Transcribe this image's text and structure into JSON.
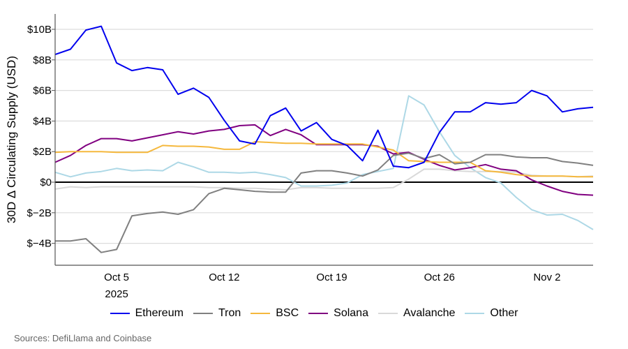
{
  "chart_data": {
    "type": "line",
    "title": "",
    "xlabel": "",
    "ylabel": "30D Δ Circulating Supply (USD)",
    "x_start": "2025-10-01",
    "x_end": "2025-11-05",
    "x_ticks": [
      {
        "date": "2025-10-05",
        "label": "Oct 5",
        "sublabel": "2025"
      },
      {
        "date": "2025-10-12",
        "label": "Oct 12",
        "sublabel": ""
      },
      {
        "date": "2025-10-19",
        "label": "Oct 19",
        "sublabel": ""
      },
      {
        "date": "2025-10-26",
        "label": "Oct 26",
        "sublabel": ""
      },
      {
        "date": "2025-11-02",
        "label": "Nov 2",
        "sublabel": ""
      }
    ],
    "ylim": [
      -5.3,
      11
    ],
    "y_unit": "B USD",
    "y_ticks": [
      {
        "value": 10,
        "label": "$10B"
      },
      {
        "value": 8,
        "label": "$8B"
      },
      {
        "value": 6,
        "label": "$6B"
      },
      {
        "value": 4,
        "label": "$4B"
      },
      {
        "value": 2,
        "label": "$2B"
      },
      {
        "value": 0,
        "label": "$0"
      },
      {
        "value": -2,
        "label": "$−2B"
      },
      {
        "value": -4,
        "label": "$−4B"
      }
    ],
    "grid": true,
    "zero_line": true,
    "legend_position": "bottom",
    "series": [
      {
        "name": "Ethereum",
        "color": "#0000ee",
        "values": [
          8.35,
          8.7,
          9.95,
          10.2,
          7.8,
          7.3,
          7.5,
          7.35,
          5.75,
          6.15,
          5.55,
          4.05,
          2.7,
          2.5,
          4.35,
          4.85,
          3.35,
          3.9,
          2.8,
          2.4,
          1.4,
          3.4,
          1.05,
          0.95,
          1.3,
          3.25,
          4.6,
          4.6,
          5.2,
          5.1,
          5.2,
          6.0,
          5.65,
          4.6,
          4.8,
          4.9
        ]
      },
      {
        "name": "Tron",
        "color": "#808080",
        "values": [
          -3.85,
          -3.85,
          -3.7,
          -4.6,
          -4.4,
          -2.2,
          -2.05,
          -1.95,
          -2.1,
          -1.8,
          -0.75,
          -0.4,
          -0.5,
          -0.6,
          -0.65,
          -0.65,
          0.6,
          0.75,
          0.75,
          0.6,
          0.4,
          0.8,
          1.75,
          1.9,
          1.55,
          1.8,
          1.2,
          1.3,
          1.8,
          1.8,
          1.65,
          1.6,
          1.6,
          1.35,
          1.25,
          1.1
        ]
      },
      {
        "name": "BSC",
        "color": "#f5b83d",
        "values": [
          1.95,
          2.0,
          2.0,
          2.0,
          1.95,
          1.95,
          1.95,
          2.4,
          2.35,
          2.35,
          2.3,
          2.15,
          2.15,
          2.65,
          2.6,
          2.55,
          2.55,
          2.5,
          2.5,
          2.5,
          2.5,
          2.3,
          2.1,
          1.4,
          1.35,
          1.3,
          1.3,
          1.3,
          0.75,
          0.65,
          0.5,
          0.4,
          0.4,
          0.4,
          0.35,
          0.35
        ]
      },
      {
        "name": "Solana",
        "color": "#800080",
        "values": [
          1.3,
          1.75,
          2.4,
          2.85,
          2.85,
          2.7,
          2.9,
          3.1,
          3.3,
          3.15,
          3.35,
          3.45,
          3.7,
          3.75,
          3.05,
          3.45,
          3.1,
          2.45,
          2.45,
          2.45,
          2.45,
          2.35,
          1.85,
          1.95,
          1.5,
          1.1,
          0.8,
          0.95,
          1.15,
          0.85,
          0.75,
          0.15,
          -0.25,
          -0.6,
          -0.8,
          -0.85
        ]
      },
      {
        "name": "Avalanche",
        "color": "#d9d9d9",
        "values": [
          -0.45,
          -0.3,
          -0.35,
          -0.3,
          -0.3,
          -0.3,
          -0.3,
          -0.3,
          -0.3,
          -0.3,
          -0.35,
          -0.35,
          -0.4,
          -0.4,
          -0.45,
          -0.5,
          -0.35,
          -0.35,
          -0.4,
          -0.4,
          -0.4,
          -0.4,
          -0.35,
          0.2,
          0.85,
          0.85,
          0.75,
          0.7,
          0.7,
          0.7,
          0.65,
          0.45,
          0.4,
          0.4,
          0.35,
          0.4
        ]
      },
      {
        "name": "Other",
        "color": "#add8e6",
        "values": [
          0.65,
          0.35,
          0.6,
          0.7,
          0.9,
          0.75,
          0.8,
          0.75,
          1.3,
          1.0,
          0.65,
          0.65,
          0.6,
          0.65,
          0.5,
          0.3,
          -0.25,
          -0.25,
          -0.2,
          -0.05,
          0.5,
          0.7,
          0.9,
          5.65,
          5.05,
          3.3,
          1.75,
          0.95,
          0.3,
          -0.05,
          -1.0,
          -1.8,
          -2.15,
          -2.1,
          -2.5,
          -3.1
        ]
      }
    ]
  },
  "source": "Sources: DefiLlama and Coinbase"
}
